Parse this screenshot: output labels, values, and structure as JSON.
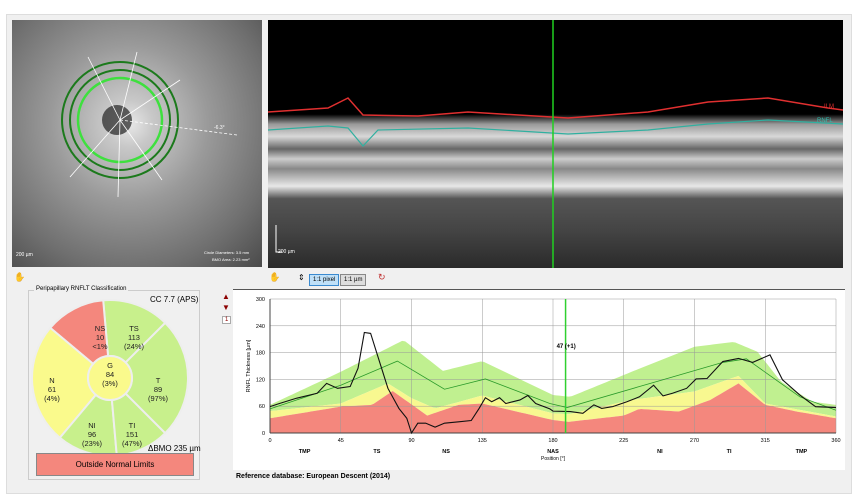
{
  "fundus": {
    "scale_label": "200 µm",
    "info_line1": "Circle Diameters: 3.5 mm",
    "info_line2": "BMO Area: 2.23 mm²",
    "angle_label": "-6.3°"
  },
  "oct": {
    "scale_label": "200 µm",
    "ilm_label": "ILM",
    "rnfl_label": "RNFL"
  },
  "toolbar": {
    "pixel_button": "1:1 pixel",
    "um_button": "1:1 µm"
  },
  "classification": {
    "title": "Peripapillary RNFLT Classification",
    "cc": "CC 7.7 (APS)",
    "bmo": "BMO 235 µm",
    "bmo_delta": "Δ",
    "result": "Outside Normal Limits",
    "sectors": [
      {
        "id": "T",
        "value": "89",
        "pct": "(97%)",
        "color": "#c8f08c"
      },
      {
        "id": "TS",
        "value": "113",
        "pct": "(24%)",
        "color": "#c8f08c"
      },
      {
        "id": "NS",
        "value": "10",
        "pct": "<1%",
        "color": "#f4877d"
      },
      {
        "id": "N",
        "value": "61",
        "pct": "(4%)",
        "color": "#fafa8c"
      },
      {
        "id": "NI",
        "value": "96",
        "pct": "(23%)",
        "color": "#c8f08c"
      },
      {
        "id": "TI",
        "value": "151",
        "pct": "(47%)",
        "color": "#c8f08c"
      },
      {
        "id": "G",
        "value": "84",
        "pct": "(3%)",
        "color": "#fafa8c"
      }
    ]
  },
  "nav": {
    "page": "1"
  },
  "reference": "Reference database: European Descent (2014)",
  "chart_data": {
    "type": "line",
    "ylabel": "RNFL Thickness [µm]",
    "xlabel": "Position [°]",
    "xlim": [
      0,
      360
    ],
    "ylim": [
      0,
      300
    ],
    "xticks": [
      0,
      45,
      90,
      135,
      180,
      225,
      270,
      315,
      360
    ],
    "yticks": [
      0,
      60,
      120,
      180,
      240,
      300
    ],
    "sector_labels": [
      {
        "x": 22,
        "t": "TMP"
      },
      {
        "x": 68,
        "t": "TS"
      },
      {
        "x": 112,
        "t": "NS"
      },
      {
        "x": 180,
        "t": "NAS"
      },
      {
        "x": 248,
        "t": "NI"
      },
      {
        "x": 292,
        "t": "TI"
      },
      {
        "x": 338,
        "t": "TMP"
      }
    ],
    "cursor": {
      "x": 188,
      "label": "47 (+1)"
    },
    "band_upper": [
      [
        0,
        63
      ],
      [
        45,
        137
      ],
      [
        85,
        208
      ],
      [
        110,
        139
      ],
      [
        135,
        161
      ],
      [
        180,
        85
      ],
      [
        191,
        81
      ],
      [
        230,
        137
      ],
      [
        270,
        193
      ],
      [
        295,
        204
      ],
      [
        310,
        182
      ],
      [
        325,
        115
      ],
      [
        345,
        70
      ],
      [
        360,
        63
      ]
    ],
    "band_normal_low": [
      [
        0,
        49
      ],
      [
        45,
        66
      ],
      [
        75,
        111
      ],
      [
        90,
        78
      ],
      [
        105,
        55
      ],
      [
        135,
        84
      ],
      [
        180,
        44
      ],
      [
        190,
        42
      ],
      [
        230,
        74
      ],
      [
        270,
        93
      ],
      [
        298,
        128
      ],
      [
        315,
        66
      ],
      [
        360,
        37
      ]
    ],
    "band_borderline_low": [
      [
        0,
        33
      ],
      [
        45,
        59
      ],
      [
        65,
        63
      ],
      [
        78,
        94
      ],
      [
        100,
        39
      ],
      [
        120,
        63
      ],
      [
        135,
        66
      ],
      [
        180,
        29
      ],
      [
        190,
        25
      ],
      [
        225,
        39
      ],
      [
        235,
        54
      ],
      [
        260,
        48
      ],
      [
        280,
        74
      ],
      [
        298,
        111
      ],
      [
        315,
        63
      ],
      [
        335,
        48
      ],
      [
        360,
        33
      ]
    ],
    "series": [
      {
        "name": "mean",
        "color": "#2a9a2a",
        "points": [
          [
            0,
            54
          ],
          [
            45,
            107
          ],
          [
            81,
            161
          ],
          [
            111,
            98
          ],
          [
            137,
            121
          ],
          [
            178,
            66
          ],
          [
            189,
            57
          ],
          [
            235,
            104
          ],
          [
            288,
            158
          ],
          [
            303,
            166
          ],
          [
            337,
            81
          ],
          [
            360,
            51
          ]
        ]
      },
      {
        "name": "patient",
        "color": "#111111",
        "points": [
          [
            0,
            59
          ],
          [
            6,
            66
          ],
          [
            17,
            78
          ],
          [
            30,
            89
          ],
          [
            36,
            111
          ],
          [
            43,
            100
          ],
          [
            51,
            104
          ],
          [
            56,
            145
          ],
          [
            60,
            225
          ],
          [
            64,
            223
          ],
          [
            69,
            167
          ],
          [
            75,
            100
          ],
          [
            82,
            55
          ],
          [
            87,
            33
          ],
          [
            90,
            0
          ],
          [
            94,
            22
          ],
          [
            99,
            22
          ],
          [
            105,
            13
          ],
          [
            111,
            22
          ],
          [
            120,
            25
          ],
          [
            128,
            28
          ],
          [
            133,
            55
          ],
          [
            137,
            79
          ],
          [
            141,
            70
          ],
          [
            146,
            79
          ],
          [
            150,
            66
          ],
          [
            159,
            74
          ],
          [
            164,
            84
          ],
          [
            169,
            66
          ],
          [
            178,
            54
          ],
          [
            180,
            49
          ],
          [
            191,
            48
          ],
          [
            199,
            44
          ],
          [
            206,
            63
          ],
          [
            211,
            55
          ],
          [
            218,
            59
          ],
          [
            227,
            70
          ],
          [
            235,
            81
          ],
          [
            244,
            107
          ],
          [
            250,
            83
          ],
          [
            256,
            89
          ],
          [
            265,
            100
          ],
          [
            271,
            121
          ],
          [
            278,
            122
          ],
          [
            288,
            160
          ],
          [
            298,
            167
          ],
          [
            307,
            158
          ],
          [
            318,
            175
          ],
          [
            326,
            119
          ],
          [
            337,
            85
          ],
          [
            347,
            59
          ],
          [
            360,
            57
          ]
        ]
      }
    ],
    "colors": {
      "green": "#c0f090",
      "yellow": "#f8f890",
      "red": "#f4877d"
    }
  }
}
